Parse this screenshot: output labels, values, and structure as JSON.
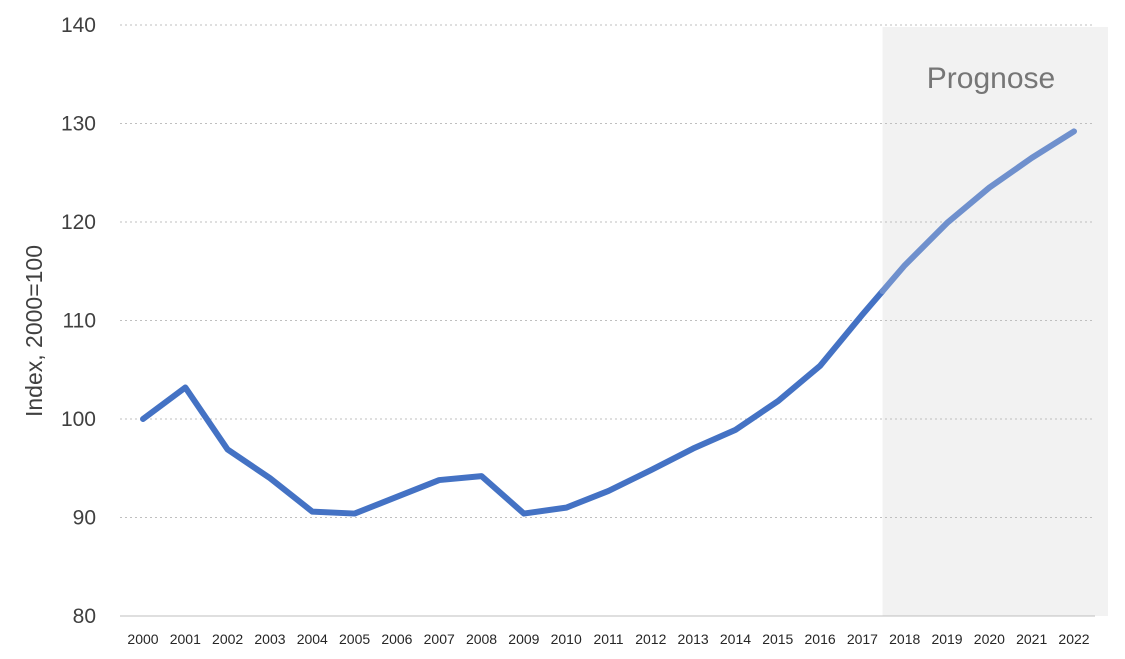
{
  "chart_data": {
    "type": "line",
    "ylabel": "Index, 2000=100",
    "ylim": [
      80,
      140
    ],
    "yticks": [
      80,
      90,
      100,
      110,
      120,
      130,
      140
    ],
    "grid": true,
    "x": [
      "2000",
      "2001",
      "2002",
      "2003",
      "2004",
      "2005",
      "2006",
      "2007",
      "2008",
      "2009",
      "2010",
      "2011",
      "2012",
      "2013",
      "2014",
      "2015",
      "2016",
      "2017",
      "2018",
      "2019",
      "2020",
      "2021",
      "2022"
    ],
    "series": [
      {
        "values": [
          100.0,
          103.2,
          96.9,
          94.0,
          90.6,
          90.4,
          92.1,
          93.8,
          94.2,
          90.4,
          91.0,
          92.7,
          94.8,
          97.0,
          98.9,
          101.8,
          105.4,
          110.6,
          115.6,
          119.9,
          123.5,
          126.5,
          129.2
        ],
        "color": "#4472c4",
        "forecast_color": "#6f90cd"
      }
    ],
    "forecast": {
      "label": "Prognose",
      "start_after": "2017",
      "shade_color": "#f2f2f2"
    }
  }
}
